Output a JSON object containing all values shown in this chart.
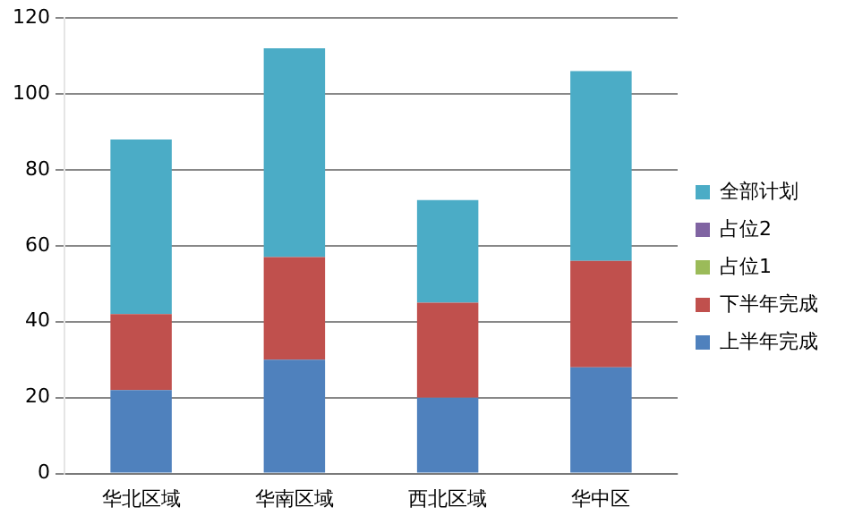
{
  "chart_data": {
    "type": "bar",
    "stacked": true,
    "categories": [
      "华北区域",
      "华南区域",
      "西北区域",
      "华中区"
    ],
    "series": [
      {
        "name": "上半年完成",
        "color": "#4f81bd",
        "values": [
          22,
          30,
          20,
          28
        ]
      },
      {
        "name": "下半年完成",
        "color": "#c0504d",
        "values": [
          20,
          27,
          25,
          28
        ]
      },
      {
        "name": "占位1",
        "color": "#9bbb59",
        "values": [
          0,
          0,
          0,
          0
        ]
      },
      {
        "name": "占位2",
        "color": "#8064a2",
        "values": [
          0,
          0,
          0,
          0
        ]
      },
      {
        "name": "全部计划",
        "color": "#4bacc6",
        "values": [
          46,
          55,
          27,
          50
        ]
      }
    ],
    "ylim": [
      0,
      120
    ],
    "yticks": [
      0,
      20,
      40,
      60,
      80,
      100,
      120
    ],
    "grid": "y",
    "legend": "right"
  }
}
